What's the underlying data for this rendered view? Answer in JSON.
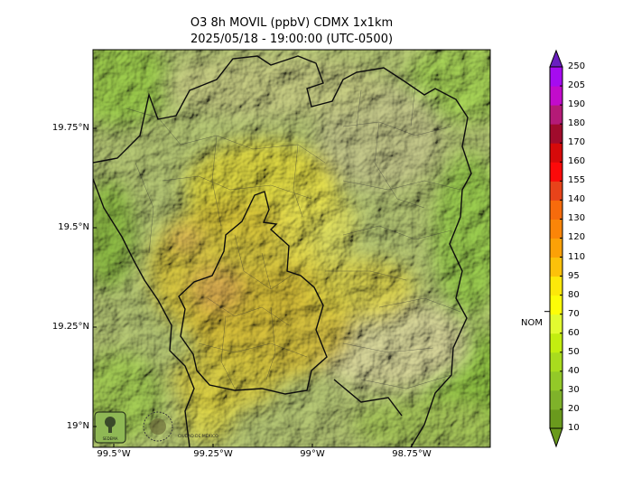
{
  "title": {
    "line1": "O3 8h MOVIL (ppbV) CDMX 1x1km",
    "line2": "2025/05/18 - 19:00:00 (UTC-0500)"
  },
  "axes": {
    "y_ticks": [
      "19.75°N",
      "19.5°N",
      "19.25°N",
      "19°N"
    ],
    "x_ticks": [
      "99.5°W",
      "99.25°W",
      "99°W",
      "98.75°W"
    ]
  },
  "colorbar": {
    "levels": [
      "10",
      "20",
      "30",
      "40",
      "50",
      "60",
      "70",
      "80",
      "95",
      "110",
      "120",
      "130",
      "140",
      "155",
      "160",
      "170",
      "180",
      "190",
      "205",
      "250"
    ],
    "colors": [
      "#6a9a1d",
      "#7fb22a",
      "#93c928",
      "#a9dc1e",
      "#c3ee10",
      "#e2fb30",
      "#fdfd08",
      "#fde80a",
      "#fcc10a",
      "#fca107",
      "#fb8508",
      "#f76b0c",
      "#e8431a",
      "#fc0a0a",
      "#d60a0a",
      "#a00b2c",
      "#b41a77",
      "#c20bcb",
      "#a60bf0",
      "#6a1fc0"
    ],
    "nom_label": "NOM",
    "nom_value": 70
  },
  "logos": {
    "left_text": "SEDEMA",
    "right_text": "CIUDAD DE MÉXICO"
  },
  "colors": {
    "terrain_base": "#b9c77a",
    "ozone_overlay": "#e2cf2a",
    "boundary": "#111111"
  }
}
